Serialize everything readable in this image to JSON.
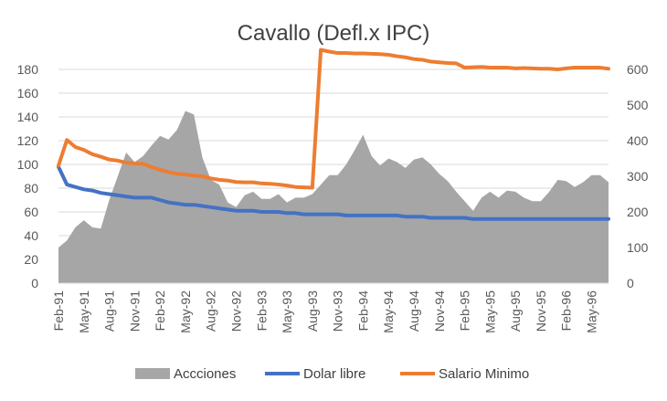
{
  "chart_data": {
    "type": "area",
    "title": "Cavallo (Defl.x IPC)",
    "xlabel": "",
    "ylabel": "",
    "y_left": {
      "min": 0,
      "max": 180,
      "ticks": [
        0,
        20,
        40,
        60,
        80,
        100,
        120,
        140,
        160,
        180
      ]
    },
    "y_right": {
      "min": 0,
      "max": 600,
      "ticks": [
        0,
        100,
        200,
        300,
        400,
        500,
        600
      ]
    },
    "grid": true,
    "legend_position": "bottom",
    "x": [
      "Feb-91",
      "Mar-91",
      "Apr-91",
      "May-91",
      "Jun-91",
      "Jul-91",
      "Aug-91",
      "Sep-91",
      "Oct-91",
      "Nov-91",
      "Dec-91",
      "Jan-92",
      "Feb-92",
      "Mar-92",
      "Apr-92",
      "May-92",
      "Jun-92",
      "Jul-92",
      "Aug-92",
      "Sep-92",
      "Oct-92",
      "Nov-92",
      "Dec-92",
      "Jan-93",
      "Feb-93",
      "Mar-93",
      "Apr-93",
      "May-93",
      "Jun-93",
      "Jul-93",
      "Aug-93",
      "Sep-93",
      "Oct-93",
      "Nov-93",
      "Dec-93",
      "Jan-94",
      "Feb-94",
      "Mar-94",
      "Apr-94",
      "May-94",
      "Jun-94",
      "Jul-94",
      "Aug-94",
      "Sep-94",
      "Oct-94",
      "Nov-94",
      "Dec-94",
      "Jan-95",
      "Feb-95",
      "Mar-95",
      "Apr-95",
      "May-95",
      "Jun-95",
      "Jul-95",
      "Aug-95",
      "Sep-95",
      "Oct-95",
      "Nov-95",
      "Dec-95",
      "Jan-96",
      "Feb-96",
      "Mar-96",
      "Apr-96",
      "May-96",
      "Jun-96",
      "Jul-96"
    ],
    "x_tick_labels": [
      "Feb-91",
      "May-91",
      "Aug-91",
      "Nov-91",
      "Feb-92",
      "May-92",
      "Aug-92",
      "Nov-92",
      "Feb-93",
      "May-93",
      "Aug-93",
      "Nov-93",
      "Feb-94",
      "May-94",
      "Aug-94",
      "Nov-94",
      "Feb-95",
      "May-95",
      "Aug-95",
      "Nov-95",
      "Feb-96",
      "May-96"
    ],
    "series": [
      {
        "name": "Accciones",
        "kind": "area",
        "axis": "left",
        "color": "#a6a6a6",
        "values": [
          30,
          36,
          47,
          53,
          47,
          46,
          70,
          90,
          110,
          102,
          107,
          116,
          124,
          121,
          129,
          145,
          142,
          106,
          87,
          83,
          68,
          64,
          74,
          77,
          71,
          71,
          75,
          68,
          72,
          72,
          75,
          83,
          91,
          91,
          100,
          112,
          125,
          107,
          99,
          105,
          102,
          97,
          104,
          106,
          100,
          92,
          86,
          77,
          69,
          61,
          72,
          77,
          72,
          78,
          77,
          72,
          69,
          69,
          77,
          87,
          86,
          81,
          85,
          91,
          91,
          85
        ]
      },
      {
        "name": "Dolar libre",
        "kind": "line",
        "axis": "left",
        "color": "#4472c4",
        "values": [
          98,
          83,
          81,
          79,
          78,
          76,
          75,
          74,
          73,
          72,
          72,
          72,
          70,
          68,
          67,
          66,
          66,
          65,
          64,
          63,
          62,
          61,
          61,
          61,
          60,
          60,
          60,
          59,
          59,
          58,
          58,
          58,
          58,
          58,
          57,
          57,
          57,
          57,
          57,
          57,
          57,
          56,
          56,
          56,
          55,
          55,
          55,
          55,
          55,
          54,
          54,
          54,
          54,
          54,
          54,
          54,
          54,
          54,
          54,
          54,
          54,
          54,
          54,
          54,
          54,
          54
        ]
      },
      {
        "name": "Salario Minimo",
        "kind": "line",
        "axis": "right",
        "color": "#ed7d31",
        "values": [
          330,
          402,
          382,
          374,
          362,
          355,
          347,
          344,
          338,
          336,
          335,
          326,
          318,
          312,
          307,
          305,
          302,
          300,
          294,
          290,
          288,
          284,
          283,
          283,
          280,
          279,
          277,
          274,
          270,
          269,
          268,
          655,
          650,
          646,
          646,
          645,
          645,
          644,
          643,
          641,
          637,
          634,
          629,
          627,
          622,
          620,
          618,
          617,
          605,
          606,
          607,
          605,
          605,
          605,
          603,
          604,
          603,
          602,
          602,
          600,
          603,
          605,
          605,
          605,
          605,
          602
        ]
      }
    ]
  }
}
